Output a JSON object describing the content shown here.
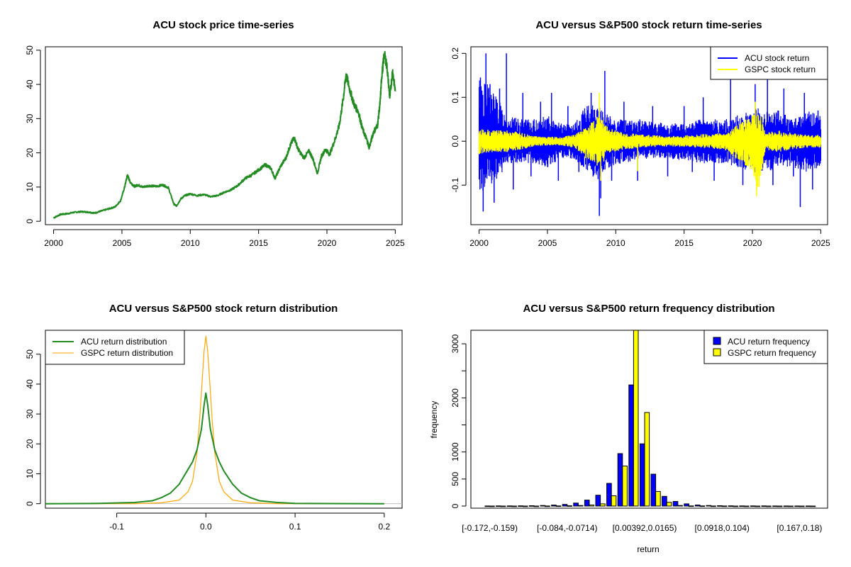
{
  "chart_data": [
    {
      "type": "line",
      "title": "ACU stock price time-series",
      "xlabel": "",
      "ylabel": "",
      "xlim": [
        1999.4,
        2025.5
      ],
      "ylim": [
        -1,
        51
      ],
      "xticks": [
        2000,
        2005,
        2010,
        2015,
        2020,
        2025
      ],
      "yticks": [
        0,
        10,
        20,
        30,
        40,
        50
      ],
      "ytick_rotate": true,
      "grid": false,
      "colors": {
        "price": "#228B22"
      },
      "series": [
        {
          "color": "#228B22",
          "x": [
            2000.0,
            2000.5,
            2001.0,
            2001.5,
            2002.0,
            2002.5,
            2003.0,
            2003.5,
            2004.0,
            2004.5,
            2004.9,
            2005.2,
            2005.4,
            2005.6,
            2005.9,
            2006.2,
            2006.5,
            2007.0,
            2007.5,
            2008.0,
            2008.4,
            2008.8,
            2009.0,
            2009.3,
            2009.6,
            2010.0,
            2010.5,
            2011.0,
            2011.5,
            2012.0,
            2012.5,
            2013.0,
            2013.5,
            2014.0,
            2014.5,
            2015.0,
            2015.5,
            2015.9,
            2016.2,
            2016.6,
            2017.0,
            2017.3,
            2017.6,
            2017.9,
            2018.3,
            2018.7,
            2019.0,
            2019.3,
            2019.6,
            2019.9,
            2020.2,
            2020.6,
            2020.9,
            2021.2,
            2021.4,
            2021.7,
            2022.0,
            2022.3,
            2022.6,
            2022.9,
            2023.1,
            2023.4,
            2023.7,
            2023.9,
            2024.0,
            2024.2,
            2024.4,
            2024.6,
            2024.8,
            2025.0
          ],
          "values": [
            1.0,
            2.0,
            2.2,
            2.6,
            2.8,
            2.7,
            2.4,
            3.0,
            3.6,
            4.2,
            6.0,
            10.0,
            13.5,
            11.5,
            10.2,
            10.6,
            10.0,
            10.4,
            10.2,
            10.6,
            9.8,
            5.0,
            4.5,
            6.5,
            7.5,
            8.0,
            7.5,
            7.8,
            7.2,
            7.5,
            8.5,
            9.2,
            10.5,
            12.5,
            13.5,
            15.0,
            16.5,
            15.5,
            12.5,
            16.0,
            18.5,
            22.0,
            24.5,
            21.0,
            18.5,
            20.5,
            18.0,
            14.0,
            19.0,
            21.0,
            19.5,
            24.0,
            28.0,
            36.0,
            43.0,
            38.0,
            34.0,
            32.0,
            27.0,
            24.0,
            21.5,
            26.0,
            28.0,
            35.0,
            42.0,
            49.0,
            45.0,
            36.0,
            44.0,
            38.0
          ]
        }
      ]
    },
    {
      "type": "line",
      "title": "ACU versus S&P500 stock return time-series",
      "xlabel": "",
      "ylabel": "",
      "xlim": [
        1999.4,
        2025.5
      ],
      "ylim": [
        -0.19,
        0.215
      ],
      "xticks": [
        2000,
        2005,
        2010,
        2015,
        2020,
        2025
      ],
      "yticks": [
        -0.1,
        0.0,
        0.1,
        0.2
      ],
      "ytick_labels": [
        "-0.1",
        "0.0",
        "0.1",
        "0.2"
      ],
      "ytick_rotate": true,
      "grid": false,
      "legend": "top-right",
      "colors": {
        "acu": "#0000FF",
        "gspc": "#FFFF00"
      },
      "series": [
        {
          "name": "ACU stock return",
          "color": "#0000FF",
          "x": [
            2000.0,
            2001.0,
            2002.0,
            2003.0,
            2004.0,
            2005.0,
            2006.0,
            2007.0,
            2008.0,
            2008.8,
            2009.5,
            2010.5,
            2012.0,
            2014.0,
            2016.0,
            2018.0,
            2020.0,
            2020.4,
            2021.0,
            2022.0,
            2023.0,
            2024.0,
            2025.0
          ],
          "upper": [
            0.15,
            0.12,
            0.06,
            0.05,
            0.05,
            0.06,
            0.04,
            0.04,
            0.09,
            0.08,
            0.06,
            0.05,
            0.05,
            0.04,
            0.05,
            0.05,
            0.07,
            0.08,
            0.07,
            0.07,
            0.05,
            0.07,
            0.06
          ],
          "lower": [
            -0.12,
            -0.1,
            -0.06,
            -0.05,
            -0.05,
            -0.06,
            -0.04,
            -0.04,
            -0.08,
            -0.09,
            -0.06,
            -0.05,
            -0.04,
            -0.04,
            -0.05,
            -0.05,
            -0.07,
            -0.08,
            -0.07,
            -0.06,
            -0.06,
            -0.07,
            -0.06
          ],
          "spikes": [
            [
              2000.1,
              0.145
            ],
            [
              2000.3,
              -0.16
            ],
            [
              2000.5,
              0.2
            ],
            [
              2000.8,
              0.13
            ],
            [
              2001.1,
              -0.14
            ],
            [
              2001.5,
              0.12
            ],
            [
              2002.0,
              0.2
            ],
            [
              2002.5,
              -0.11
            ],
            [
              2003.2,
              0.11
            ],
            [
              2003.8,
              -0.08
            ],
            [
              2004.5,
              0.09
            ],
            [
              2005.3,
              0.11
            ],
            [
              2005.8,
              -0.09
            ],
            [
              2006.5,
              0.08
            ],
            [
              2007.3,
              -0.07
            ],
            [
              2008.2,
              0.11
            ],
            [
              2008.8,
              -0.17
            ],
            [
              2008.9,
              -0.13
            ],
            [
              2009.2,
              0.16
            ],
            [
              2009.7,
              -0.09
            ],
            [
              2010.6,
              0.09
            ],
            [
              2011.6,
              -0.09
            ],
            [
              2012.7,
              0.08
            ],
            [
              2013.8,
              -0.08
            ],
            [
              2015.0,
              0.08
            ],
            [
              2015.6,
              -0.07
            ],
            [
              2016.4,
              0.1
            ],
            [
              2017.2,
              -0.09
            ],
            [
              2018.4,
              0.14
            ],
            [
              2019.3,
              -0.1
            ],
            [
              2020.2,
              0.13
            ],
            [
              2020.3,
              -0.11
            ],
            [
              2021.1,
              0.14
            ],
            [
              2021.5,
              -0.1
            ],
            [
              2022.3,
              0.12
            ],
            [
              2023.0,
              -0.08
            ],
            [
              2023.5,
              -0.15
            ],
            [
              2023.8,
              0.11
            ],
            [
              2024.4,
              -0.11
            ],
            [
              2024.8,
              0.07
            ]
          ]
        },
        {
          "name": "GSPC stock return",
          "color": "#FFFF00",
          "x": [
            2000.0,
            2001.0,
            2002.0,
            2003.0,
            2004.0,
            2005.0,
            2006.0,
            2007.0,
            2008.0,
            2008.8,
            2009.5,
            2010.5,
            2012.0,
            2014.0,
            2016.0,
            2018.0,
            2020.0,
            2020.4,
            2021.0,
            2022.0,
            2023.0,
            2024.0,
            2025.0
          ],
          "upper": [
            0.03,
            0.025,
            0.025,
            0.02,
            0.012,
            0.01,
            0.01,
            0.015,
            0.04,
            0.06,
            0.03,
            0.02,
            0.015,
            0.012,
            0.015,
            0.02,
            0.06,
            0.08,
            0.02,
            0.025,
            0.018,
            0.015,
            0.015
          ],
          "lower": [
            -0.03,
            -0.025,
            -0.025,
            -0.02,
            -0.012,
            -0.01,
            -0.01,
            -0.015,
            -0.045,
            -0.06,
            -0.03,
            -0.02,
            -0.015,
            -0.012,
            -0.015,
            -0.02,
            -0.07,
            -0.12,
            -0.02,
            -0.025,
            -0.018,
            -0.015,
            -0.015
          ],
          "spikes": [
            [
              2008.8,
              0.11
            ],
            [
              2008.9,
              -0.09
            ],
            [
              2011.6,
              -0.068
            ],
            [
              2020.2,
              0.09
            ],
            [
              2020.3,
              -0.125
            ]
          ]
        }
      ]
    },
    {
      "type": "line",
      "title": "ACU versus S&P500 stock return distribution",
      "xlabel": "",
      "ylabel": "",
      "xlim": [
        -0.18,
        0.22
      ],
      "ylim": [
        -1.5,
        58
      ],
      "xticks": [
        -0.1,
        0.0,
        0.1,
        0.2
      ],
      "xtick_labels": [
        "-0.1",
        "0.0",
        "0.1",
        "0.2"
      ],
      "yticks": [
        0,
        10,
        20,
        30,
        40,
        50
      ],
      "ytick_rotate": true,
      "grid": false,
      "legend": "top-left",
      "colors": {
        "acu": "#228B22",
        "gspc": "#FFA500",
        "zero": "#BEBEBE"
      },
      "series": [
        {
          "name": "ACU return distribution",
          "color": "#228B22",
          "x": [
            -0.18,
            -0.12,
            -0.08,
            -0.06,
            -0.05,
            -0.04,
            -0.03,
            -0.02,
            -0.015,
            -0.01,
            -0.005,
            -0.002,
            0.0,
            0.002,
            0.005,
            0.01,
            0.015,
            0.02,
            0.03,
            0.04,
            0.05,
            0.06,
            0.08,
            0.1,
            0.14,
            0.2
          ],
          "values": [
            0.0,
            0.1,
            0.4,
            1.0,
            2.0,
            3.5,
            6.5,
            11.5,
            14.0,
            18.0,
            25.0,
            33.0,
            37.0,
            33.0,
            25.0,
            18.0,
            14.0,
            11.0,
            6.5,
            3.5,
            2.0,
            1.0,
            0.4,
            0.1,
            0.05,
            0.0
          ]
        },
        {
          "name": "GSPC return distribution",
          "color": "#FFA500",
          "x": [
            -0.18,
            -0.08,
            -0.05,
            -0.03,
            -0.02,
            -0.015,
            -0.01,
            -0.007,
            -0.004,
            -0.002,
            0.0,
            0.002,
            0.004,
            0.007,
            0.01,
            0.015,
            0.02,
            0.03,
            0.05,
            0.08,
            0.2
          ],
          "values": [
            0.0,
            0.0,
            0.3,
            1.2,
            4.0,
            7.5,
            17.0,
            28.0,
            42.0,
            51.0,
            56.0,
            51.0,
            42.0,
            28.0,
            17.0,
            7.5,
            4.0,
            1.2,
            0.3,
            0.0,
            0.0
          ]
        }
      ]
    },
    {
      "type": "bar",
      "title": "ACU versus S&P500 return frequency distribution",
      "xlabel": "return",
      "ylabel": "frequency",
      "ylim": [
        0,
        3250
      ],
      "yticks": [
        0,
        500,
        1000,
        1500,
        2000,
        2500,
        3000
      ],
      "ytick_labels": [
        "0",
        "500",
        "1000",
        "",
        "2000",
        "",
        "3000"
      ],
      "ytick_rotate": true,
      "grid": false,
      "legend": "top-right",
      "colors": {
        "acu": "#0000FF",
        "gspc": "#FFFF00"
      },
      "categories": [
        "[-0.172,-0.159)",
        "",
        "",
        "",
        "",
        "",
        "",
        "[-0.084,-0.0714)",
        "",
        "",
        "",
        "",
        "",
        "",
        "[0.00392,0.0165)",
        "",
        "",
        "",
        "",
        "",
        "",
        "[0.0918,0.104)",
        "",
        "",
        "",
        "",
        "",
        "",
        "[0.167,0.18)",
        ""
      ],
      "series": [
        {
          "name": "ACU return frequency",
          "color": "#0000FF",
          "values": [
            1,
            2,
            3,
            4,
            6,
            10,
            18,
            30,
            55,
            110,
            200,
            420,
            970,
            2240,
            1150,
            590,
            180,
            85,
            40,
            20,
            10,
            6,
            4,
            3,
            2,
            2,
            1,
            1,
            1,
            1
          ]
        },
        {
          "name": "GSPC return frequency",
          "color": "#FFFF00",
          "values": [
            0,
            0,
            0,
            0,
            0,
            1,
            2,
            5,
            10,
            20,
            40,
            190,
            740,
            3250,
            1730,
            270,
            70,
            10,
            3,
            2,
            1,
            1,
            0,
            0,
            0,
            0,
            0,
            0,
            0,
            0
          ]
        }
      ]
    }
  ]
}
